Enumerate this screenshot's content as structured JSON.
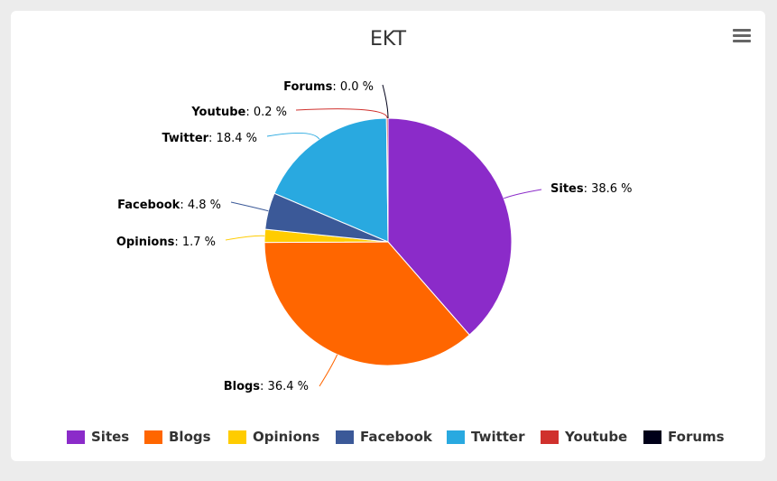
{
  "chart_data": {
    "type": "pie",
    "title": "EKT",
    "slices": [
      {
        "name": "Sites",
        "value": 38.6,
        "label_value": "38.6 %",
        "color": "#8B2BC9"
      },
      {
        "name": "Blogs",
        "value": 36.4,
        "label_value": "36.4 %",
        "color": "#FF6600"
      },
      {
        "name": "Opinions",
        "value": 1.7,
        "label_value": "1.7 %",
        "color": "#FFCC00"
      },
      {
        "name": "Facebook",
        "value": 4.8,
        "label_value": "4.8 %",
        "color": "#3B5998"
      },
      {
        "name": "Twitter",
        "value": 18.4,
        "label_value": "18.4 %",
        "color": "#29A9E0"
      },
      {
        "name": "Youtube",
        "value": 0.2,
        "label_value": "0.2 %",
        "color": "#D0312D"
      },
      {
        "name": "Forums",
        "value": 0.0,
        "label_value": "0.0 %",
        "color": "#000019"
      }
    ],
    "legend_position": "bottom"
  },
  "menu": {
    "icon": "hamburger-menu-icon"
  }
}
